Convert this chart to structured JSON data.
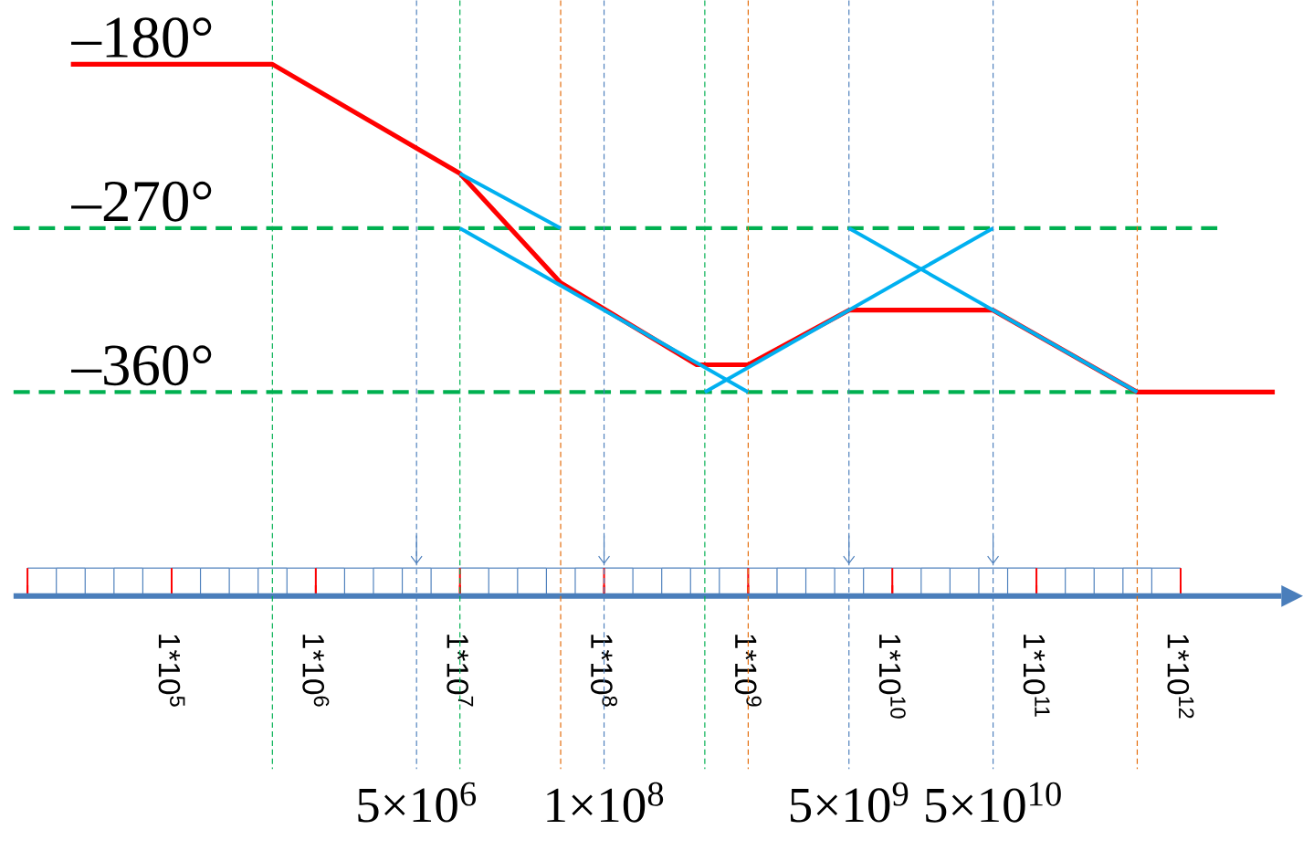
{
  "chart_data": {
    "type": "line",
    "log": "x",
    "xlim": [
      8000,
      5000000000000
    ],
    "ylim": [
      -472,
      -145
    ],
    "xticks": [
      {
        "value": 10000,
        "label": null
      },
      {
        "value": 100000,
        "label": "1*10$^{5}$"
      },
      {
        "value": 1000000,
        "label": "1*10$^{6}$"
      },
      {
        "value": 10000000,
        "label": "1*10$^{7}$"
      },
      {
        "value": 100000000,
        "label": "1*10$^{8}$"
      },
      {
        "value": 1000000000,
        "label": "1*10$^{9}$"
      },
      {
        "value": 10000000000,
        "label": "1*10$^{10}$"
      },
      {
        "value": 100000000000,
        "label": "1*10$^{11}$"
      },
      {
        "value": 1000000000000,
        "label": "1*10$^{12}$"
      }
    ],
    "yticks": [
      {
        "value": -180,
        "label": "–180°"
      },
      {
        "value": -270,
        "label": "–270°"
      },
      {
        "value": -360,
        "label": "–360°"
      }
    ],
    "series": [
      {
        "color": "#ff0000",
        "x": [
          20000,
          500000,
          10000000,
          50000000,
          440000000,
          1000000000,
          5000000000,
          50000000000,
          500000000000,
          4500000000000
        ],
        "values": [
          -180,
          -180,
          -240,
          -300,
          -345,
          -345,
          -315,
          -315,
          -360,
          -360
        ]
      },
      {
        "color": "#00b0f0",
        "x": [
          10000000,
          50000000
        ],
        "values": [
          -240,
          -270
        ]
      },
      {
        "color": "#00b0f0",
        "x": [
          10000000,
          1000000000
        ],
        "values": [
          -270,
          -360
        ]
      },
      {
        "color": "#00b0f0",
        "x": [
          500000000,
          50000000000
        ],
        "values": [
          -360,
          -270
        ]
      },
      {
        "color": "#00b0f0",
        "x": [
          5000000000,
          500000000000
        ],
        "values": [
          -270,
          -360
        ]
      }
    ],
    "ref_lines": [
      {
        "axis": "y",
        "value": -270,
        "color": "#00b050",
        "line_style": "dashed"
      },
      {
        "axis": "y",
        "value": -360,
        "color": "#00b050",
        "line_style": "dashed"
      },
      {
        "axis": "x",
        "value": 500000,
        "color": "#00b050",
        "line_style": "dashed"
      },
      {
        "axis": "x",
        "value": 10000000,
        "color": "#00b050",
        "line_style": "dashed"
      },
      {
        "axis": "x",
        "value": 500000000,
        "color": "#00b050",
        "line_style": "dashed"
      },
      {
        "axis": "x",
        "value": 50000000,
        "color": "#e46c0a",
        "line_style": "dashed"
      },
      {
        "axis": "x",
        "value": 1000000000,
        "color": "#e46c0a",
        "line_style": "dashed"
      },
      {
        "axis": "x",
        "value": 500000000000,
        "color": "#e46c0a",
        "line_style": "dashed"
      },
      {
        "axis": "x",
        "value": 5000000,
        "color": "#4f81bd",
        "line_style": "dashed",
        "label": "5×10$^{6}$"
      },
      {
        "axis": "x",
        "value": 100000000,
        "color": "#4f81bd",
        "line_style": "dashed",
        "label": "1×10$^{8}$"
      },
      {
        "axis": "x",
        "value": 5000000000,
        "color": "#4f81bd",
        "line_style": "dashed",
        "label": "5×10$^{9}$"
      },
      {
        "axis": "x",
        "value": 50000000000,
        "color": "#4f81bd",
        "line_style": "dashed",
        "label": "5×10$^{10}$"
      }
    ]
  }
}
